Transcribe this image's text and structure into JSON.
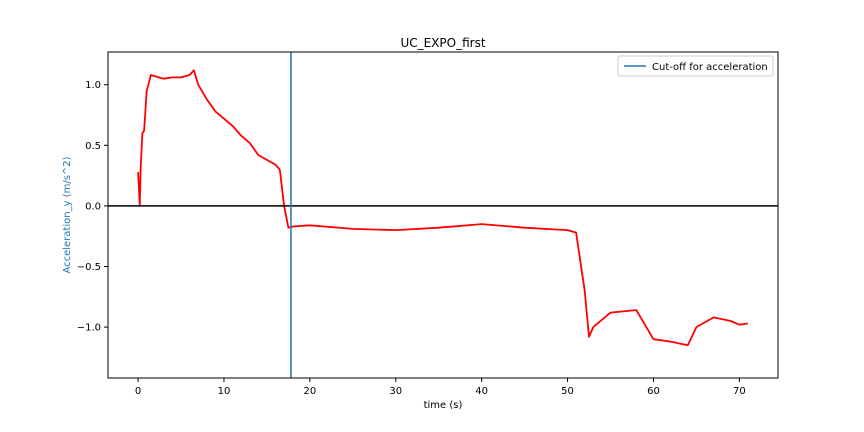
{
  "chart_data": {
    "type": "line",
    "title": "UC_EXPO_first",
    "xlabel": "time (s)",
    "ylabel": "Acceleration_y (m/s^2)",
    "xlim": [
      -3.5,
      74.5
    ],
    "ylim": [
      -1.42,
      1.27
    ],
    "x_ticks": [
      0,
      10,
      20,
      30,
      40,
      50,
      60,
      70
    ],
    "y_ticks": [
      -1.0,
      -0.5,
      0.0,
      0.5,
      1.0
    ],
    "x_tick_labels": [
      "0",
      "10",
      "20",
      "30",
      "40",
      "50",
      "60",
      "70"
    ],
    "y_tick_labels": [
      "−1.0",
      "−0.5",
      "0.0",
      "0.5",
      "1.0"
    ],
    "ylabel_color": "#1f77b4",
    "grid": false,
    "legend": {
      "position": "top-right",
      "entries": [
        "Cut-off for acceleration"
      ]
    },
    "series": [
      {
        "color": "#ff0000",
        "x": [
          0.0,
          0.2,
          0.3,
          0.5,
          0.7,
          1.0,
          1.5,
          2.0,
          3.0,
          4.0,
          5.0,
          6.0,
          6.5,
          7.0,
          8.0,
          9.0,
          10.0,
          11.0,
          12.0,
          13.0,
          14.0,
          15.0,
          16.0,
          16.5,
          17.0,
          17.5,
          18.0,
          20.0,
          25.0,
          30.0,
          35.0,
          40.0,
          45.0,
          50.0,
          51.0,
          52.0,
          52.5,
          53.0,
          55.0,
          58.0,
          60.0,
          62.0,
          64.0,
          65.0,
          67.0,
          69.0,
          70.0,
          71.0
        ],
        "y": [
          0.28,
          0.0,
          0.3,
          0.6,
          0.62,
          0.95,
          1.08,
          1.07,
          1.05,
          1.06,
          1.06,
          1.08,
          1.12,
          1.0,
          0.88,
          0.78,
          0.72,
          0.66,
          0.58,
          0.52,
          0.42,
          0.38,
          0.34,
          0.3,
          0.0,
          -0.18,
          -0.17,
          -0.16,
          -0.19,
          -0.2,
          -0.18,
          -0.15,
          -0.18,
          -0.2,
          -0.22,
          -0.7,
          -1.08,
          -1.0,
          -0.88,
          -0.86,
          -1.1,
          -1.12,
          -1.15,
          -1.0,
          -0.92,
          -0.95,
          -0.98,
          -0.97
        ]
      },
      {
        "type": "hline",
        "color": "#000000",
        "y": 0.0
      },
      {
        "name": "Cut-off for acceleration",
        "type": "vline",
        "color": "#1f77b4",
        "x": 17.8
      }
    ]
  }
}
